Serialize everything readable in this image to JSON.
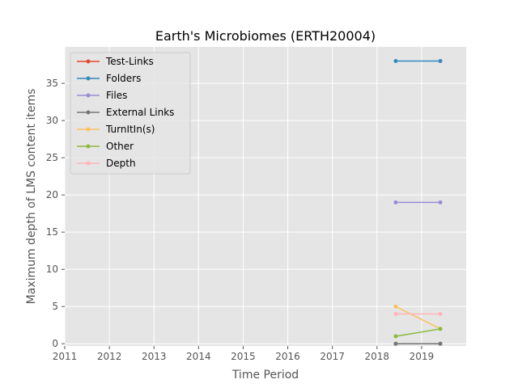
{
  "chart_data": {
    "type": "line",
    "title": "Earth's Microbiomes (ERTH20004)",
    "xlabel": "Time Period",
    "ylabel": "Maximum depth of LMS content items",
    "xlim": [
      2011,
      2020
    ],
    "ylim": [
      -0.3,
      39.9
    ],
    "xticks": [
      "2011",
      "2012",
      "2013",
      "2014",
      "2015",
      "2016",
      "2017",
      "2018",
      "2019"
    ],
    "yticks": [
      "0",
      "5",
      "10",
      "15",
      "20",
      "25",
      "30",
      "35"
    ],
    "grid": true,
    "legend_position": "upper-left",
    "x": [
      2018.42,
      2019.42
    ],
    "series": [
      {
        "name": "Test-Links",
        "color": "#E24A33",
        "values": [
          0,
          0
        ]
      },
      {
        "name": "Folders",
        "color": "#348ABD",
        "values": [
          38,
          38
        ]
      },
      {
        "name": "Files",
        "color": "#988ED5",
        "values": [
          19,
          19
        ]
      },
      {
        "name": "External Links",
        "color": "#777777",
        "values": [
          0,
          0
        ]
      },
      {
        "name": "TurnItIn(s)",
        "color": "#FBC15E",
        "values": [
          5,
          2
        ]
      },
      {
        "name": "Other",
        "color": "#8EBA42",
        "values": [
          1,
          2
        ]
      },
      {
        "name": "Depth",
        "color": "#FFB5B8",
        "values": [
          4,
          4
        ]
      }
    ]
  }
}
